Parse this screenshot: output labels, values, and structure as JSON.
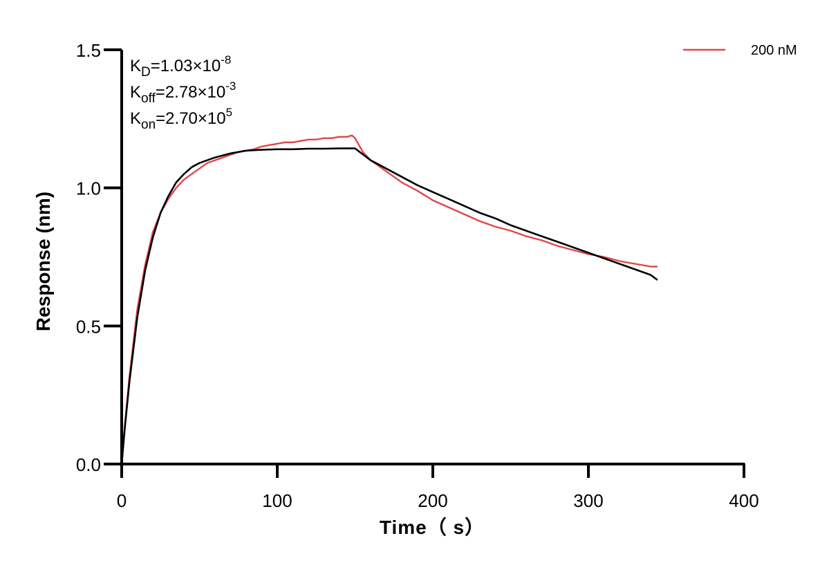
{
  "chart_data": {
    "type": "line",
    "xlabel": "Time（ s）",
    "ylabel": "Response (nm)",
    "xlim": [
      0,
      400
    ],
    "ylim": [
      0,
      1.5
    ],
    "x_ticks": [
      0,
      100,
      200,
      300,
      400
    ],
    "x_tick_labels": [
      "0",
      "100",
      "200",
      "300",
      "400"
    ],
    "y_ticks": [
      0,
      0.5,
      1.0,
      1.5
    ],
    "y_tick_labels": [
      "0.0",
      "0.5",
      "1.0",
      "1.5"
    ],
    "grid": false,
    "legend_position": "top-right",
    "annotations": [
      {
        "base": "K",
        "sub": "D",
        "eq": "=1.03×10",
        "sup": "-8"
      },
      {
        "base": "K",
        "sub": "off",
        "eq": "=2.78×10",
        "sup": "-3"
      },
      {
        "base": "K",
        "sub": "on",
        "eq": "=2.70×10",
        "sup": "5"
      }
    ],
    "series": [
      {
        "name": "200 nM",
        "role": "measured",
        "color": "#e0464b",
        "legend": true,
        "x": [
          0,
          2,
          5,
          10,
          15,
          20,
          25,
          30,
          35,
          40,
          45,
          50,
          55,
          60,
          65,
          70,
          75,
          80,
          85,
          90,
          95,
          100,
          105,
          110,
          115,
          120,
          125,
          130,
          135,
          140,
          145,
          148,
          150,
          152,
          155,
          160,
          165,
          170,
          175,
          180,
          190,
          200,
          210,
          220,
          230,
          240,
          250,
          260,
          270,
          280,
          290,
          300,
          310,
          320,
          330,
          340,
          344
        ],
        "y": [
          0.0,
          0.14,
          0.32,
          0.56,
          0.72,
          0.84,
          0.91,
          0.96,
          1.0,
          1.03,
          1.05,
          1.07,
          1.09,
          1.1,
          1.11,
          1.12,
          1.13,
          1.135,
          1.14,
          1.15,
          1.155,
          1.16,
          1.165,
          1.165,
          1.17,
          1.175,
          1.175,
          1.18,
          1.18,
          1.185,
          1.185,
          1.19,
          1.18,
          1.16,
          1.13,
          1.1,
          1.08,
          1.06,
          1.04,
          1.02,
          0.99,
          0.955,
          0.93,
          0.905,
          0.88,
          0.86,
          0.845,
          0.825,
          0.81,
          0.79,
          0.775,
          0.76,
          0.75,
          0.735,
          0.725,
          0.715,
          0.715
        ]
      },
      {
        "name": "fit",
        "role": "fit",
        "color": "#000000",
        "legend": false,
        "x": [
          0,
          2,
          5,
          10,
          15,
          20,
          25,
          30,
          35,
          40,
          45,
          50,
          55,
          60,
          70,
          80,
          90,
          100,
          110,
          120,
          130,
          140,
          150,
          160,
          170,
          180,
          190,
          200,
          210,
          220,
          230,
          240,
          250,
          260,
          270,
          280,
          290,
          300,
          310,
          320,
          330,
          340,
          344
        ],
        "y": [
          0.0,
          0.13,
          0.3,
          0.53,
          0.7,
          0.82,
          0.91,
          0.97,
          1.02,
          1.05,
          1.075,
          1.09,
          1.1,
          1.11,
          1.125,
          1.135,
          1.138,
          1.14,
          1.14,
          1.142,
          1.142,
          1.143,
          1.143,
          1.1,
          1.07,
          1.04,
          1.01,
          0.985,
          0.96,
          0.935,
          0.91,
          0.89,
          0.865,
          0.845,
          0.825,
          0.805,
          0.785,
          0.765,
          0.745,
          0.725,
          0.705,
          0.685,
          0.668
        ]
      }
    ]
  }
}
